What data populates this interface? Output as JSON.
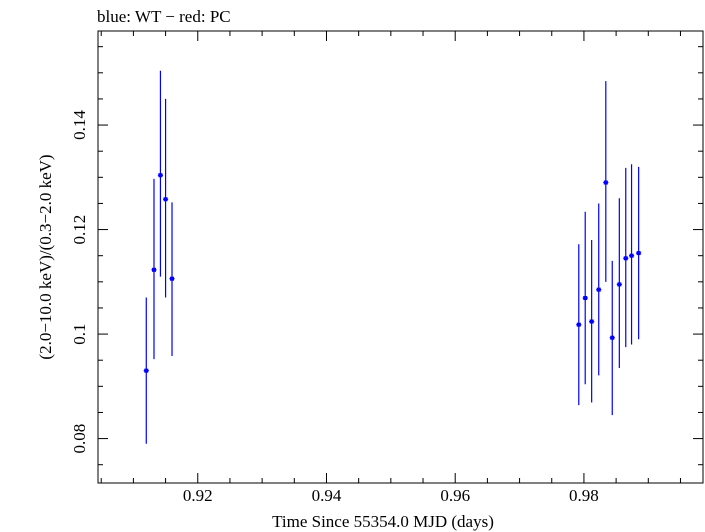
{
  "chart_data": {
    "type": "scatter",
    "title": "blue: WT − red: PC",
    "xlabel": "Time Since 55354.0 MJD (days)",
    "ylabel": "(2.0−10.0 keV)/(0.3−2.0 keV)",
    "xlim": [
      0.9045,
      0.9985
    ],
    "ylim": [
      0.0715,
      0.158
    ],
    "xticks": [
      0.92,
      0.94,
      0.96,
      0.98
    ],
    "xtick_labels": [
      "0.92",
      "0.94",
      "0.96",
      "0.98"
    ],
    "yticks": [
      0.08,
      0.1,
      0.12,
      0.14
    ],
    "ytick_labels": [
      "0.08",
      "0.1",
      "0.12",
      "0.14"
    ],
    "grid": false,
    "series": [
      {
        "name": "WT",
        "color": "#0000ff",
        "points": [
          {
            "x": 0.912,
            "y": 0.093,
            "xerr": 0.0004,
            "ylo": 0.079,
            "yhi": 0.107
          },
          {
            "x": 0.9132,
            "y": 0.1123,
            "xerr": 0.0004,
            "ylo": 0.0952,
            "yhi": 0.1297
          },
          {
            "x": 0.9142,
            "y": 0.1304,
            "xerr": 0.0004,
            "ylo": 0.111,
            "yhi": 0.1504
          },
          {
            "x": 0.915,
            "y": 0.1258,
            "xerr": 0.0004,
            "ylo": 0.107,
            "yhi": 0.145
          },
          {
            "x": 0.916,
            "y": 0.1106,
            "xerr": 0.0004,
            "ylo": 0.0958,
            "yhi": 0.1252
          },
          {
            "x": 0.9792,
            "y": 0.1018,
            "xerr": 0.0004,
            "ylo": 0.0864,
            "yhi": 0.1172
          },
          {
            "x": 0.9802,
            "y": 0.1069,
            "xerr": 0.0004,
            "ylo": 0.0904,
            "yhi": 0.1234
          },
          {
            "x": 0.9812,
            "y": 0.1024,
            "xerr": 0.0004,
            "ylo": 0.0869,
            "yhi": 0.118
          },
          {
            "x": 0.9823,
            "y": 0.1085,
            "xerr": 0.0004,
            "ylo": 0.0921,
            "yhi": 0.125
          },
          {
            "x": 0.9834,
            "y": 0.129,
            "xerr": 0.0004,
            "ylo": 0.11,
            "yhi": 0.1484
          },
          {
            "x": 0.9844,
            "y": 0.0993,
            "xerr": 0.0004,
            "ylo": 0.0845,
            "yhi": 0.114
          },
          {
            "x": 0.9855,
            "y": 0.1095,
            "xerr": 0.0004,
            "ylo": 0.0935,
            "yhi": 0.126
          },
          {
            "x": 0.9865,
            "y": 0.1145,
            "xerr": 0.0004,
            "ylo": 0.0975,
            "yhi": 0.1318
          },
          {
            "x": 0.9874,
            "y": 0.115,
            "xerr": 0.0004,
            "ylo": 0.098,
            "yhi": 0.1325
          },
          {
            "x": 0.9885,
            "y": 0.1155,
            "xerr": 0.0004,
            "ylo": 0.099,
            "yhi": 0.132
          }
        ]
      }
    ]
  }
}
